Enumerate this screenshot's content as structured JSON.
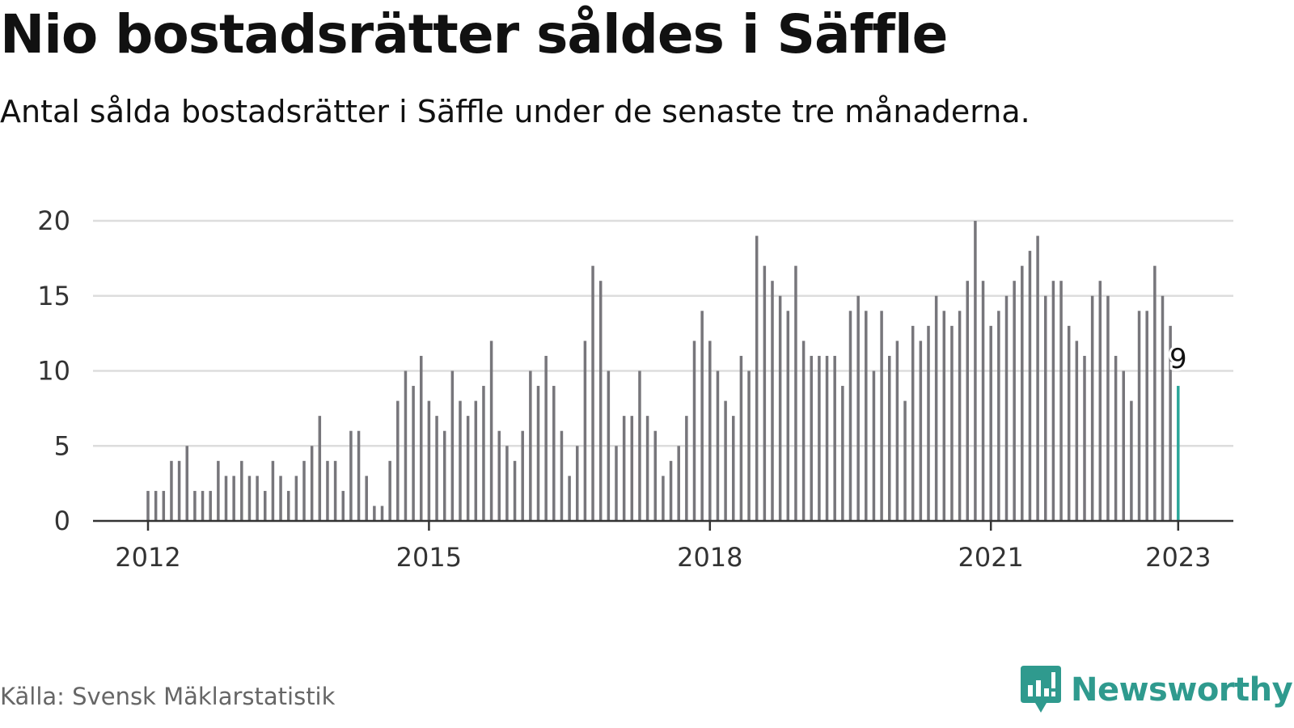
{
  "title": "Nio bostadsrätter såldes i Säffle",
  "subtitle": "Antal sålda bostadsrätter i Säffle under de senaste tre månaderna.",
  "source": "Källa: Svensk Mäklarstatistik",
  "logo": {
    "text": "Newsworthy",
    "icon": "newsworthy-chart-icon"
  },
  "colors": {
    "bar": "#77767b",
    "highlight": "#2ba79a",
    "grid": "#dddddd",
    "axis": "#333333",
    "logo": "#2f9a8e"
  },
  "chart_data": {
    "type": "bar",
    "title": "",
    "xlabel": "",
    "ylabel": "",
    "ylim": [
      0,
      20
    ],
    "yticks": [
      "0",
      "5",
      "10",
      "15",
      "20"
    ],
    "xticks": [
      "2012",
      "2015",
      "2018",
      "2021",
      "2023"
    ],
    "grid": true,
    "start": "2012-01",
    "end": "2023-01",
    "frequency": "monthly",
    "values": [
      2,
      2,
      2,
      4,
      4,
      5,
      2,
      2,
      2,
      4,
      3,
      3,
      4,
      3,
      3,
      2,
      4,
      3,
      2,
      3,
      4,
      5,
      7,
      4,
      4,
      2,
      6,
      6,
      3,
      1,
      1,
      4,
      8,
      10,
      9,
      11,
      8,
      7,
      6,
      10,
      8,
      7,
      8,
      9,
      12,
      6,
      5,
      4,
      6,
      10,
      9,
      11,
      9,
      6,
      3,
      5,
      12,
      17,
      16,
      10,
      5,
      7,
      7,
      10,
      7,
      6,
      3,
      4,
      5,
      7,
      12,
      14,
      12,
      10,
      8,
      7,
      11,
      10,
      19,
      17,
      16,
      15,
      14,
      17,
      12,
      11,
      11,
      11,
      11,
      9,
      14,
      15,
      14,
      10,
      14,
      11,
      12,
      8,
      13,
      12,
      13,
      15,
      14,
      13,
      14,
      16,
      20,
      16,
      13,
      14,
      15,
      16,
      17,
      18,
      19,
      15,
      16,
      16,
      13,
      12,
      11,
      15,
      16,
      15,
      11,
      10,
      8,
      14,
      14,
      17,
      15,
      13,
      9
    ],
    "highlight_last": true,
    "annotation": {
      "label": "9",
      "month": "2023-01"
    }
  }
}
